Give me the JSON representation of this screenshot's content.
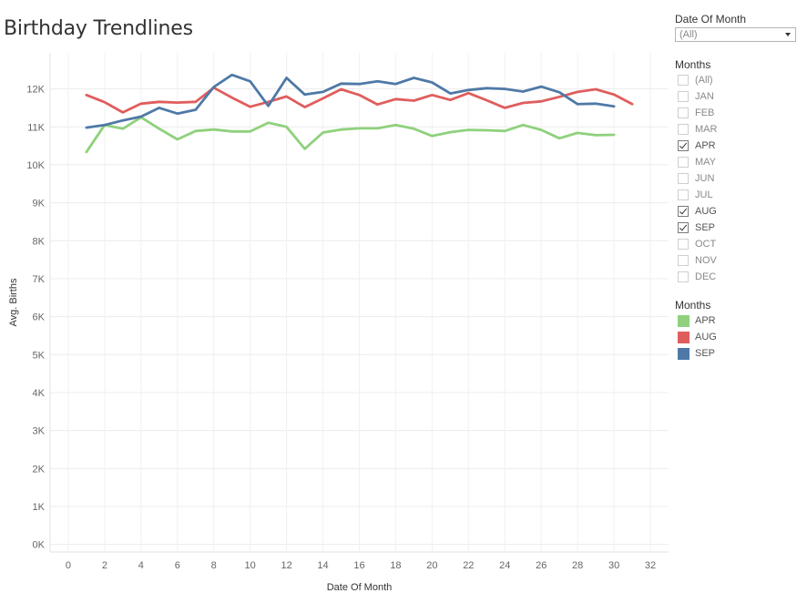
{
  "title": "Birthday Trendlines",
  "date_filter": {
    "title": "Date Of Month",
    "value": "(All)"
  },
  "months_filter": {
    "title": "Months",
    "items": [
      {
        "label": "(All)",
        "checked": false
      },
      {
        "label": "JAN",
        "checked": false
      },
      {
        "label": "FEB",
        "checked": false
      },
      {
        "label": "MAR",
        "checked": false
      },
      {
        "label": "APR",
        "checked": true
      },
      {
        "label": "MAY",
        "checked": false
      },
      {
        "label": "JUN",
        "checked": false
      },
      {
        "label": "JUL",
        "checked": false
      },
      {
        "label": "AUG",
        "checked": true
      },
      {
        "label": "SEP",
        "checked": true
      },
      {
        "label": "OCT",
        "checked": false
      },
      {
        "label": "NOV",
        "checked": false
      },
      {
        "label": "DEC",
        "checked": false
      }
    ]
  },
  "legend": {
    "title": "Months",
    "items": [
      {
        "label": "APR",
        "color": "#8fd17c"
      },
      {
        "label": "AUG",
        "color": "#e05d5d"
      },
      {
        "label": "SEP",
        "color": "#4e79a7"
      }
    ]
  },
  "chart_data": {
    "type": "line",
    "xlabel": "Date Of Month",
    "ylabel": "Avg. Births",
    "xlim": [
      -1,
      33
    ],
    "ylim": [
      -200,
      12950
    ],
    "xticks": [
      0,
      2,
      4,
      6,
      8,
      10,
      12,
      14,
      16,
      18,
      20,
      22,
      24,
      26,
      28,
      30,
      32
    ],
    "yticks": [
      0,
      1000,
      2000,
      3000,
      4000,
      5000,
      6000,
      7000,
      8000,
      9000,
      10000,
      11000,
      12000
    ],
    "ytick_labels": [
      "0K",
      "1K",
      "2K",
      "3K",
      "4K",
      "5K",
      "6K",
      "7K",
      "8K",
      "9K",
      "10K",
      "11K",
      "12K"
    ],
    "grid": true,
    "series": [
      {
        "name": "APR",
        "color": "#8fd17c",
        "x": [
          1,
          2,
          3,
          4,
          5,
          6,
          7,
          8,
          9,
          10,
          11,
          12,
          13,
          14,
          15,
          16,
          17,
          18,
          19,
          20,
          21,
          22,
          23,
          24,
          25,
          26,
          27,
          28,
          29,
          30
        ],
        "values": [
          10340,
          11050,
          10950,
          11250,
          10950,
          10670,
          10890,
          10930,
          10880,
          10880,
          11110,
          11000,
          10420,
          10850,
          10930,
          10960,
          10960,
          11050,
          10950,
          10760,
          10860,
          10920,
          10910,
          10890,
          11050,
          10920,
          10700,
          10840,
          10780,
          10790
        ]
      },
      {
        "name": "AUG",
        "color": "#e05d5d",
        "x": [
          1,
          2,
          3,
          4,
          5,
          6,
          7,
          8,
          9,
          10,
          11,
          12,
          13,
          14,
          15,
          16,
          17,
          18,
          19,
          20,
          21,
          22,
          23,
          24,
          25,
          26,
          27,
          28,
          29,
          30,
          31
        ],
        "values": [
          11840,
          11650,
          11380,
          11610,
          11660,
          11640,
          11660,
          12030,
          11770,
          11530,
          11660,
          11800,
          11520,
          11750,
          11990,
          11840,
          11590,
          11730,
          11690,
          11840,
          11710,
          11890,
          11700,
          11500,
          11630,
          11670,
          11790,
          11920,
          11990,
          11850,
          11600
        ]
      },
      {
        "name": "SEP",
        "color": "#4e79a7",
        "x": [
          1,
          2,
          3,
          4,
          5,
          6,
          7,
          8,
          9,
          10,
          11,
          12,
          13,
          14,
          15,
          16,
          17,
          18,
          19,
          20,
          21,
          22,
          23,
          24,
          25,
          26,
          27,
          28,
          29,
          30
        ],
        "values": [
          10980,
          11050,
          11170,
          11270,
          11500,
          11350,
          11450,
          12050,
          12370,
          12200,
          11550,
          12290,
          11850,
          11920,
          12140,
          12130,
          12200,
          12130,
          12290,
          12170,
          11880,
          11970,
          12020,
          12000,
          11930,
          12060,
          11910,
          11600,
          11610,
          11540
        ]
      }
    ]
  }
}
